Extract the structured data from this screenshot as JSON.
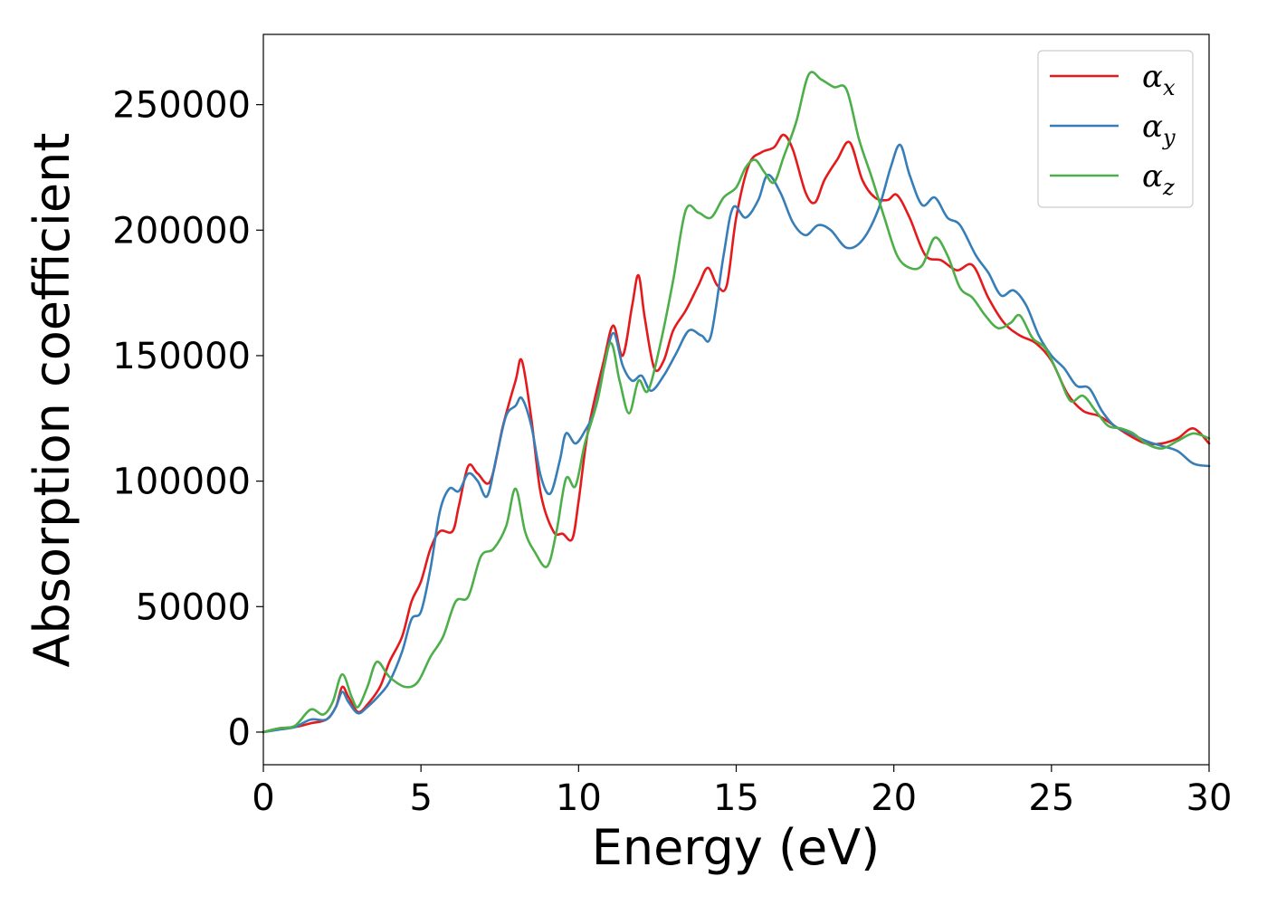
{
  "chart_data": {
    "type": "line",
    "xlabel": "Energy (eV)",
    "ylabel": "Absorption coefficient",
    "xlim": [
      0,
      30
    ],
    "ylim": [
      -13000,
      278000
    ],
    "xticks": [
      0,
      5,
      10,
      15,
      20,
      25,
      30
    ],
    "xtick_labels": [
      "0",
      "5",
      "10",
      "15",
      "20",
      "25",
      "30"
    ],
    "yticks": [
      0,
      50000,
      100000,
      150000,
      200000,
      250000
    ],
    "ytick_labels": [
      "0",
      "50000",
      "100000",
      "150000",
      "200000",
      "250000"
    ],
    "grid": false,
    "legend_position": "top-right",
    "series": [
      {
        "name": "α",
        "name_sub": "x",
        "color": "#e41a1c",
        "points": [
          [
            0,
            0
          ],
          [
            0.5,
            1500
          ],
          [
            1,
            2000
          ],
          [
            1.5,
            3500
          ],
          [
            2,
            5000
          ],
          [
            2.3,
            10000
          ],
          [
            2.5,
            18000
          ],
          [
            2.7,
            14000
          ],
          [
            3,
            8000
          ],
          [
            3.3,
            11000
          ],
          [
            3.7,
            18000
          ],
          [
            4,
            28000
          ],
          [
            4.4,
            38000
          ],
          [
            4.7,
            52000
          ],
          [
            5,
            60000
          ],
          [
            5.3,
            73000
          ],
          [
            5.6,
            80000
          ],
          [
            6,
            80000
          ],
          [
            6.2,
            90000
          ],
          [
            6.5,
            106000
          ],
          [
            6.8,
            103000
          ],
          [
            7.2,
            100000
          ],
          [
            7.6,
            122000
          ],
          [
            8,
            140000
          ],
          [
            8.2,
            148000
          ],
          [
            8.5,
            125000
          ],
          [
            8.8,
            95000
          ],
          [
            9.2,
            80000
          ],
          [
            9.5,
            79000
          ],
          [
            9.8,
            77000
          ],
          [
            10,
            92000
          ],
          [
            10.3,
            120000
          ],
          [
            10.8,
            148000
          ],
          [
            11.1,
            162000
          ],
          [
            11.4,
            150000
          ],
          [
            11.7,
            170000
          ],
          [
            11.9,
            182000
          ],
          [
            12.1,
            165000
          ],
          [
            12.4,
            145000
          ],
          [
            12.7,
            148000
          ],
          [
            13,
            160000
          ],
          [
            13.4,
            168000
          ],
          [
            13.8,
            178000
          ],
          [
            14.1,
            185000
          ],
          [
            14.4,
            178000
          ],
          [
            14.7,
            178000
          ],
          [
            15,
            205000
          ],
          [
            15.4,
            226000
          ],
          [
            15.8,
            231000
          ],
          [
            16.2,
            233000
          ],
          [
            16.5,
            238000
          ],
          [
            16.8,
            232000
          ],
          [
            17.2,
            215000
          ],
          [
            17.5,
            211000
          ],
          [
            17.8,
            220000
          ],
          [
            18.2,
            228000
          ],
          [
            18.6,
            235000
          ],
          [
            19,
            220000
          ],
          [
            19.4,
            213000
          ],
          [
            19.8,
            212000
          ],
          [
            20.1,
            214000
          ],
          [
            20.5,
            205000
          ],
          [
            21,
            190000
          ],
          [
            21.5,
            188000
          ],
          [
            22,
            184000
          ],
          [
            22.5,
            186000
          ],
          [
            23,
            173000
          ],
          [
            23.5,
            163000
          ],
          [
            24,
            158000
          ],
          [
            24.5,
            155000
          ],
          [
            25,
            148000
          ],
          [
            25.5,
            135000
          ],
          [
            26,
            128000
          ],
          [
            26.5,
            126000
          ],
          [
            27,
            122000
          ],
          [
            27.5,
            118000
          ],
          [
            28,
            115000
          ],
          [
            28.5,
            115000
          ],
          [
            29,
            117000
          ],
          [
            29.5,
            121000
          ],
          [
            30,
            115000
          ]
        ]
      },
      {
        "name": "α",
        "name_sub": "y",
        "color": "#377eb8",
        "points": [
          [
            0,
            0
          ],
          [
            0.5,
            1000
          ],
          [
            1,
            2000
          ],
          [
            1.5,
            5000
          ],
          [
            2,
            5000
          ],
          [
            2.3,
            10000
          ],
          [
            2.5,
            16000
          ],
          [
            2.7,
            12000
          ],
          [
            3,
            7500
          ],
          [
            3.3,
            10000
          ],
          [
            3.7,
            15000
          ],
          [
            4,
            20000
          ],
          [
            4.4,
            32000
          ],
          [
            4.7,
            45000
          ],
          [
            5,
            48000
          ],
          [
            5.3,
            65000
          ],
          [
            5.6,
            88000
          ],
          [
            5.9,
            97000
          ],
          [
            6.2,
            96000
          ],
          [
            6.5,
            103000
          ],
          [
            6.8,
            100000
          ],
          [
            7.1,
            94000
          ],
          [
            7.4,
            110000
          ],
          [
            7.7,
            126000
          ],
          [
            8,
            130000
          ],
          [
            8.2,
            133000
          ],
          [
            8.5,
            122000
          ],
          [
            8.8,
            102000
          ],
          [
            9.1,
            95000
          ],
          [
            9.4,
            108000
          ],
          [
            9.6,
            119000
          ],
          [
            9.9,
            115000
          ],
          [
            10.2,
            120000
          ],
          [
            10.5,
            128000
          ],
          [
            10.8,
            145000
          ],
          [
            11.1,
            159000
          ],
          [
            11.4,
            146000
          ],
          [
            11.7,
            140000
          ],
          [
            12,
            142000
          ],
          [
            12.3,
            136000
          ],
          [
            12.7,
            142000
          ],
          [
            13.1,
            151000
          ],
          [
            13.5,
            160000
          ],
          [
            13.9,
            158000
          ],
          [
            14.2,
            158000
          ],
          [
            14.6,
            190000
          ],
          [
            14.9,
            209000
          ],
          [
            15.3,
            205000
          ],
          [
            15.7,
            212000
          ],
          [
            16,
            222000
          ],
          [
            16.4,
            215000
          ],
          [
            16.8,
            203000
          ],
          [
            17.2,
            198000
          ],
          [
            17.6,
            202000
          ],
          [
            18,
            200000
          ],
          [
            18.5,
            193000
          ],
          [
            19,
            196000
          ],
          [
            19.5,
            208000
          ],
          [
            19.9,
            225000
          ],
          [
            20.2,
            234000
          ],
          [
            20.5,
            222000
          ],
          [
            20.9,
            210000
          ],
          [
            21.3,
            213000
          ],
          [
            21.7,
            205000
          ],
          [
            22.1,
            202000
          ],
          [
            22.6,
            190000
          ],
          [
            23,
            183000
          ],
          [
            23.4,
            174000
          ],
          [
            23.8,
            176000
          ],
          [
            24.2,
            170000
          ],
          [
            24.6,
            158000
          ],
          [
            25,
            150000
          ],
          [
            25.4,
            145000
          ],
          [
            25.8,
            138000
          ],
          [
            26.2,
            137000
          ],
          [
            26.6,
            128000
          ],
          [
            27,
            122000
          ],
          [
            27.5,
            119000
          ],
          [
            28,
            116000
          ],
          [
            28.5,
            114000
          ],
          [
            29,
            112000
          ],
          [
            29.5,
            107000
          ],
          [
            30,
            106000
          ]
        ]
      },
      {
        "name": "α",
        "name_sub": "z",
        "color": "#4daf4a",
        "points": [
          [
            0,
            0
          ],
          [
            0.5,
            1500
          ],
          [
            1,
            2500
          ],
          [
            1.5,
            9000
          ],
          [
            1.9,
            7000
          ],
          [
            2.2,
            12000
          ],
          [
            2.5,
            23000
          ],
          [
            2.8,
            14000
          ],
          [
            3,
            10000
          ],
          [
            3.3,
            18000
          ],
          [
            3.6,
            28000
          ],
          [
            4,
            22000
          ],
          [
            4.5,
            18000
          ],
          [
            4.9,
            20000
          ],
          [
            5.3,
            30000
          ],
          [
            5.7,
            38000
          ],
          [
            6.1,
            52000
          ],
          [
            6.5,
            54000
          ],
          [
            6.9,
            70000
          ],
          [
            7.3,
            73000
          ],
          [
            7.7,
            82000
          ],
          [
            8,
            97000
          ],
          [
            8.3,
            80000
          ],
          [
            8.6,
            72000
          ],
          [
            9,
            66000
          ],
          [
            9.3,
            80000
          ],
          [
            9.6,
            101000
          ],
          [
            9.9,
            98000
          ],
          [
            10.2,
            115000
          ],
          [
            10.6,
            132000
          ],
          [
            11,
            155000
          ],
          [
            11.3,
            140000
          ],
          [
            11.6,
            127000
          ],
          [
            11.9,
            140000
          ],
          [
            12.2,
            136000
          ],
          [
            12.6,
            155000
          ],
          [
            13,
            180000
          ],
          [
            13.4,
            208000
          ],
          [
            13.8,
            207000
          ],
          [
            14.2,
            205000
          ],
          [
            14.6,
            213000
          ],
          [
            15,
            217000
          ],
          [
            15.3,
            225000
          ],
          [
            15.6,
            228000
          ],
          [
            15.9,
            223000
          ],
          [
            16.2,
            219000
          ],
          [
            16.5,
            229000
          ],
          [
            16.9,
            243000
          ],
          [
            17.3,
            262000
          ],
          [
            17.7,
            260000
          ],
          [
            18.1,
            257000
          ],
          [
            18.5,
            256000
          ],
          [
            18.9,
            236000
          ],
          [
            19.3,
            221000
          ],
          [
            19.7,
            205000
          ],
          [
            20.1,
            190000
          ],
          [
            20.5,
            185000
          ],
          [
            20.9,
            186000
          ],
          [
            21.3,
            197000
          ],
          [
            21.7,
            190000
          ],
          [
            22.1,
            177000
          ],
          [
            22.5,
            173000
          ],
          [
            22.9,
            166000
          ],
          [
            23.3,
            161000
          ],
          [
            23.7,
            163000
          ],
          [
            24,
            166000
          ],
          [
            24.4,
            157000
          ],
          [
            24.8,
            153000
          ],
          [
            25.2,
            143000
          ],
          [
            25.6,
            132000
          ],
          [
            26,
            134000
          ],
          [
            26.4,
            128000
          ],
          [
            26.8,
            122000
          ],
          [
            27.2,
            121000
          ],
          [
            27.6,
            119000
          ],
          [
            28,
            115000
          ],
          [
            28.5,
            113000
          ],
          [
            29,
            116000
          ],
          [
            29.5,
            119000
          ],
          [
            30,
            117000
          ]
        ]
      }
    ]
  }
}
